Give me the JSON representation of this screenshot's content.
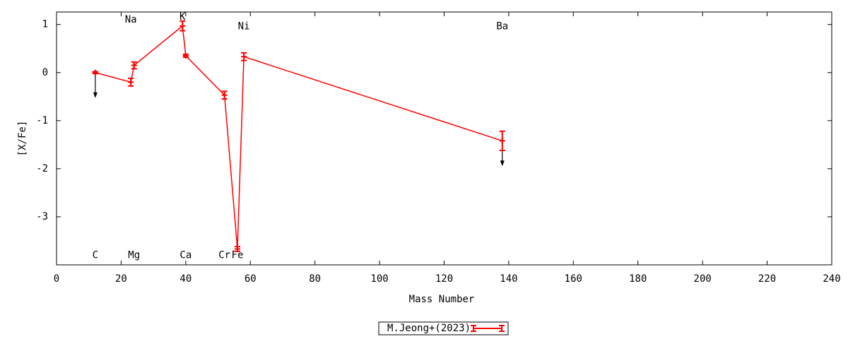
{
  "chart_data": {
    "type": "errorbar-line",
    "x_label": "Mass Number",
    "y_label": "[X/Fe]",
    "xlim": [
      0,
      240
    ],
    "xticks": [
      0,
      20,
      40,
      60,
      80,
      100,
      120,
      140,
      160,
      180,
      200,
      220,
      240
    ],
    "ylim": [
      -4,
      1.26
    ],
    "yticks": [
      -3,
      -2,
      -1,
      0,
      1
    ],
    "grid": false,
    "legend": "bottom-center",
    "series": [
      {
        "name": "M.Jeong+(2023)",
        "color": "#ff0000",
        "x": [
          12,
          23,
          24,
          39,
          40,
          52,
          56,
          58,
          138
        ],
        "values": [
          0.0,
          -0.2,
          0.15,
          0.97,
          0.35,
          -0.47,
          -3.67,
          0.33,
          -1.42
        ],
        "errors": [
          0.02,
          0.08,
          0.07,
          0.1,
          0.03,
          0.08,
          0.05,
          0.08,
          0.2
        ],
        "upper_limits": [
          true,
          false,
          false,
          false,
          false,
          false,
          false,
          false,
          true
        ]
      }
    ],
    "annotations": [
      {
        "text": "C",
        "x": 12,
        "y": -3.8
      },
      {
        "text": "Na",
        "x": 23,
        "y": 1.1
      },
      {
        "text": "Mg",
        "x": 24,
        "y": -3.8
      },
      {
        "text": "K",
        "x": 39,
        "y": 1.16
      },
      {
        "text": "Ca",
        "x": 40,
        "y": -3.8
      },
      {
        "text": "Cr",
        "x": 52,
        "y": -3.8
      },
      {
        "text": "Fe",
        "x": 56,
        "y": -3.8
      },
      {
        "text": "Ni",
        "x": 58,
        "y": 0.96
      },
      {
        "text": "Ba",
        "x": 138,
        "y": 0.96
      }
    ]
  }
}
